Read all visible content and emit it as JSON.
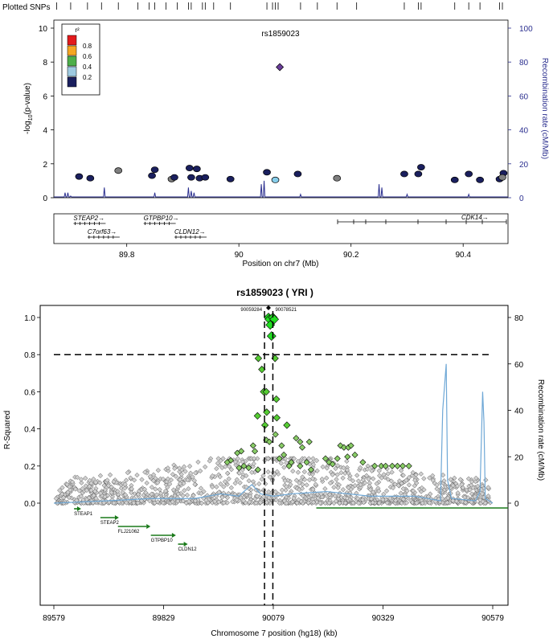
{
  "chart_data": [
    {
      "type": "scatter",
      "panel": "locuszoom",
      "title": "rs1859023",
      "plotted_snps_label": "Plotted SNPs",
      "plotted_snps_x": [
        89.675,
        89.7,
        89.73,
        89.755,
        89.785,
        89.82,
        89.84,
        89.85,
        89.87,
        89.89,
        89.91,
        89.915,
        89.935,
        89.94,
        89.955,
        89.985,
        90.05,
        90.06,
        90.065,
        90.07,
        90.11,
        90.14,
        90.175,
        90.21,
        90.295,
        90.32,
        90.325,
        90.385,
        90.41,
        90.43,
        90.465,
        90.47
      ],
      "xlabel": "Position on chr7 (Mb)",
      "ylabel": "-log10(p-value)",
      "ylabel_prefix": "-log",
      "ylabel_sub": "10",
      "ylabel_suffix": "(p-value)",
      "y2label": "Recombination rate (cM/Mb)",
      "xlim": [
        89.67,
        90.48
      ],
      "ylim": [
        0,
        10
      ],
      "y2lim": [
        0,
        100
      ],
      "xticks": [
        89.8,
        90,
        90.2,
        90.4
      ],
      "xtick_labels": [
        "89.8",
        "90",
        "90.2",
        "90.4"
      ],
      "yticks": [
        0,
        2,
        4,
        6,
        8,
        10
      ],
      "y2ticks": [
        0,
        20,
        40,
        60,
        80,
        100
      ],
      "legend": {
        "title": "r²",
        "entries": [
          {
            "label": "0.8",
            "color": "#e31a1c"
          },
          {
            "label": "0.6",
            "color": "#f5a623"
          },
          {
            "label": "0.4",
            "color": "#4daf4a"
          },
          {
            "label": "0.2",
            "color": "#9ecae1"
          },
          {
            "label": "",
            "color": "#1a1f5e"
          }
        ]
      },
      "lead_snp": {
        "x": 90.073,
        "y": 7.7,
        "color": "#6a3d9a"
      },
      "points": [
        {
          "x": 89.715,
          "y": 1.25,
          "color": "#1a1f5e"
        },
        {
          "x": 89.735,
          "y": 1.15,
          "color": "#1a1f5e"
        },
        {
          "x": 89.785,
          "y": 1.6,
          "color": "#7f7f7f"
        },
        {
          "x": 89.845,
          "y": 1.3,
          "color": "#1a1f5e"
        },
        {
          "x": 89.85,
          "y": 1.65,
          "color": "#1a1f5e"
        },
        {
          "x": 89.88,
          "y": 1.1,
          "color": "#7f7f7f"
        },
        {
          "x": 89.885,
          "y": 1.2,
          "color": "#1a1f5e"
        },
        {
          "x": 89.912,
          "y": 1.75,
          "color": "#1a1f5e"
        },
        {
          "x": 89.915,
          "y": 1.2,
          "color": "#1a1f5e"
        },
        {
          "x": 89.925,
          "y": 1.7,
          "color": "#1a1f5e"
        },
        {
          "x": 89.93,
          "y": 1.15,
          "color": "#1a1f5e"
        },
        {
          "x": 89.94,
          "y": 1.2,
          "color": "#1a1f5e"
        },
        {
          "x": 89.985,
          "y": 1.1,
          "color": "#1a1f5e"
        },
        {
          "x": 90.05,
          "y": 1.5,
          "color": "#1a1f5e"
        },
        {
          "x": 90.065,
          "y": 1.05,
          "color": "#87ceeb"
        },
        {
          "x": 90.105,
          "y": 1.4,
          "color": "#1a1f5e"
        },
        {
          "x": 90.175,
          "y": 1.15,
          "color": "#7f7f7f"
        },
        {
          "x": 90.295,
          "y": 1.4,
          "color": "#1a1f5e"
        },
        {
          "x": 90.32,
          "y": 1.4,
          "color": "#1a1f5e"
        },
        {
          "x": 90.325,
          "y": 1.8,
          "color": "#1a1f5e"
        },
        {
          "x": 90.385,
          "y": 1.05,
          "color": "#1a1f5e"
        },
        {
          "x": 90.41,
          "y": 1.4,
          "color": "#1a1f5e"
        },
        {
          "x": 90.43,
          "y": 1.05,
          "color": "#1a1f5e"
        },
        {
          "x": 90.465,
          "y": 1.1,
          "color": "#1a1f5e"
        },
        {
          "x": 90.472,
          "y": 1.45,
          "color": "#1a1f5e"
        },
        {
          "x": 90.47,
          "y": 1.2,
          "color": "#7f7f7f"
        }
      ],
      "recomb_peaks": [
        {
          "x": 89.69,
          "r": 3
        },
        {
          "x": 89.695,
          "r": 3
        },
        {
          "x": 89.7,
          "r": 1
        },
        {
          "x": 89.76,
          "r": 6
        },
        {
          "x": 89.85,
          "r": 3
        },
        {
          "x": 89.91,
          "r": 6
        },
        {
          "x": 89.915,
          "r": 4
        },
        {
          "x": 89.92,
          "r": 3
        },
        {
          "x": 90.04,
          "r": 8
        },
        {
          "x": 90.045,
          "r": 10
        },
        {
          "x": 90.11,
          "r": 2
        },
        {
          "x": 90.25,
          "r": 8
        },
        {
          "x": 90.255,
          "r": 6
        },
        {
          "x": 90.3,
          "r": 2
        },
        {
          "x": 90.41,
          "r": 2
        }
      ],
      "genes_row1": [
        {
          "name": "STEAP2",
          "x": 89.705
        },
        {
          "name": "GTPBP10",
          "x": 89.83
        }
      ],
      "genes_row2": [
        {
          "name": "C7orf63",
          "x": 89.73
        },
        {
          "name": "CLDN12",
          "x": 89.885
        }
      ],
      "gene_right": {
        "name": "CDK14",
        "x": 90.46
      }
    },
    {
      "type": "scatter",
      "panel": "snap",
      "title": "rs1859023 ( YRI )",
      "xlabel": "Chromosome 7 position (hg18) (kb)",
      "ylabel": "R-Squared",
      "y2label": "Recombination rate (cM/Mb)",
      "xlim": [
        89579,
        90579
      ],
      "ylim": [
        0,
        1.0
      ],
      "y2lim": [
        0,
        80
      ],
      "xticks": [
        89579,
        89829,
        90079,
        90329,
        90579
      ],
      "xtick_labels": [
        "89579",
        "89829",
        "90079",
        "90329",
        "90579"
      ],
      "yticks": [
        0.0,
        0.2,
        0.4,
        0.6,
        0.8,
        1.0
      ],
      "ytick_labels": [
        "0.0",
        "0.2",
        "0.4",
        "0.6",
        "0.8",
        "1.0"
      ],
      "y2ticks": [
        0,
        20,
        40,
        60,
        80
      ],
      "threshold": 0.8,
      "proxy_labels": [
        "90059284",
        "90078521"
      ],
      "proxy_x": [
        90059,
        90078
      ],
      "green_points": [
        {
          "x": 90068,
          "y": 1.0
        },
        {
          "x": 90070,
          "y": 0.99
        },
        {
          "x": 90072,
          "y": 0.96
        },
        {
          "x": 90075,
          "y": 0.9
        },
        {
          "x": 90078,
          "y": 1.0
        },
        {
          "x": 90081,
          "y": 0.99
        },
        {
          "x": 90045,
          "y": 0.78
        },
        {
          "x": 90053,
          "y": 0.72
        },
        {
          "x": 90083,
          "y": 0.78
        },
        {
          "x": 90057,
          "y": 0.6
        },
        {
          "x": 90063,
          "y": 0.6
        },
        {
          "x": 90086,
          "y": 0.56
        },
        {
          "x": 90064,
          "y": 0.49
        },
        {
          "x": 90087,
          "y": 0.46
        },
        {
          "x": 90043,
          "y": 0.47
        },
        {
          "x": 90084,
          "y": 0.37
        },
        {
          "x": 90060,
          "y": 0.42
        },
        {
          "x": 90063,
          "y": 0.34
        },
        {
          "x": 90033,
          "y": 0.31
        },
        {
          "x": 90006,
          "y": 0.28
        },
        {
          "x": 90037,
          "y": 0.28
        },
        {
          "x": 90070,
          "y": 0.33
        },
        {
          "x": 90110,
          "y": 0.42
        },
        {
          "x": 90098,
          "y": 0.31
        },
        {
          "x": 89997,
          "y": 0.27
        },
        {
          "x": 89982,
          "y": 0.23
        },
        {
          "x": 89974,
          "y": 0.22
        },
        {
          "x": 90131,
          "y": 0.35
        },
        {
          "x": 90140,
          "y": 0.33
        },
        {
          "x": 90145,
          "y": 0.3
        },
        {
          "x": 90161,
          "y": 0.33
        },
        {
          "x": 90232,
          "y": 0.31
        },
        {
          "x": 90240,
          "y": 0.3
        },
        {
          "x": 90250,
          "y": 0.3
        },
        {
          "x": 90256,
          "y": 0.31
        },
        {
          "x": 90001,
          "y": 0.19
        },
        {
          "x": 90012,
          "y": 0.2
        },
        {
          "x": 90023,
          "y": 0.19
        },
        {
          "x": 90044,
          "y": 0.18
        },
        {
          "x": 90115,
          "y": 0.2
        },
        {
          "x": 90120,
          "y": 0.22
        },
        {
          "x": 90103,
          "y": 0.26
        },
        {
          "x": 90093,
          "y": 0.24
        },
        {
          "x": 90140,
          "y": 0.2
        },
        {
          "x": 90155,
          "y": 0.22
        },
        {
          "x": 90165,
          "y": 0.18
        },
        {
          "x": 90198,
          "y": 0.24
        },
        {
          "x": 90206,
          "y": 0.22
        },
        {
          "x": 90214,
          "y": 0.21
        },
        {
          "x": 90225,
          "y": 0.24
        },
        {
          "x": 90248,
          "y": 0.25
        },
        {
          "x": 90265,
          "y": 0.26
        },
        {
          "x": 90283,
          "y": 0.22
        },
        {
          "x": 90310,
          "y": 0.2
        },
        {
          "x": 90325,
          "y": 0.2
        },
        {
          "x": 90335,
          "y": 0.2
        },
        {
          "x": 90350,
          "y": 0.2
        },
        {
          "x": 90362,
          "y": 0.2
        },
        {
          "x": 90374,
          "y": 0.2
        },
        {
          "x": 90388,
          "y": 0.2
        }
      ],
      "recomb_series": [
        [
          89579,
          0
        ],
        [
          89700,
          1
        ],
        [
          89800,
          2
        ],
        [
          89900,
          2
        ],
        [
          89960,
          4
        ],
        [
          90000,
          3
        ],
        [
          90030,
          8
        ],
        [
          90050,
          4
        ],
        [
          90080,
          3
        ],
        [
          90120,
          4
        ],
        [
          90200,
          5
        ],
        [
          90300,
          3
        ],
        [
          90400,
          3
        ],
        [
          90460,
          1
        ],
        [
          90465,
          40
        ],
        [
          90473,
          60
        ],
        [
          90476,
          10
        ],
        [
          90485,
          2
        ],
        [
          90540,
          1
        ],
        [
          90550,
          5
        ],
        [
          90556,
          48
        ],
        [
          90559,
          35
        ],
        [
          90562,
          2
        ],
        [
          90579,
          0
        ]
      ],
      "genes": [
        {
          "name": "STEAP1",
          "x0": 89625,
          "x1": 89632,
          "row": 0
        },
        {
          "name": "STEAP2",
          "x0": 89685,
          "x1": 89718,
          "row": 1
        },
        {
          "name": "FLJ21062",
          "x0": 89725,
          "x1": 89790,
          "row": 2
        },
        {
          "name": "GTPBP10",
          "x0": 89800,
          "x1": 89848,
          "row": 3
        },
        {
          "name": "CLDN12",
          "x0": 89862,
          "x1": 89875,
          "row": 4
        }
      ],
      "long_gene": {
        "x0": 90177,
        "x1": 90620
      }
    }
  ]
}
